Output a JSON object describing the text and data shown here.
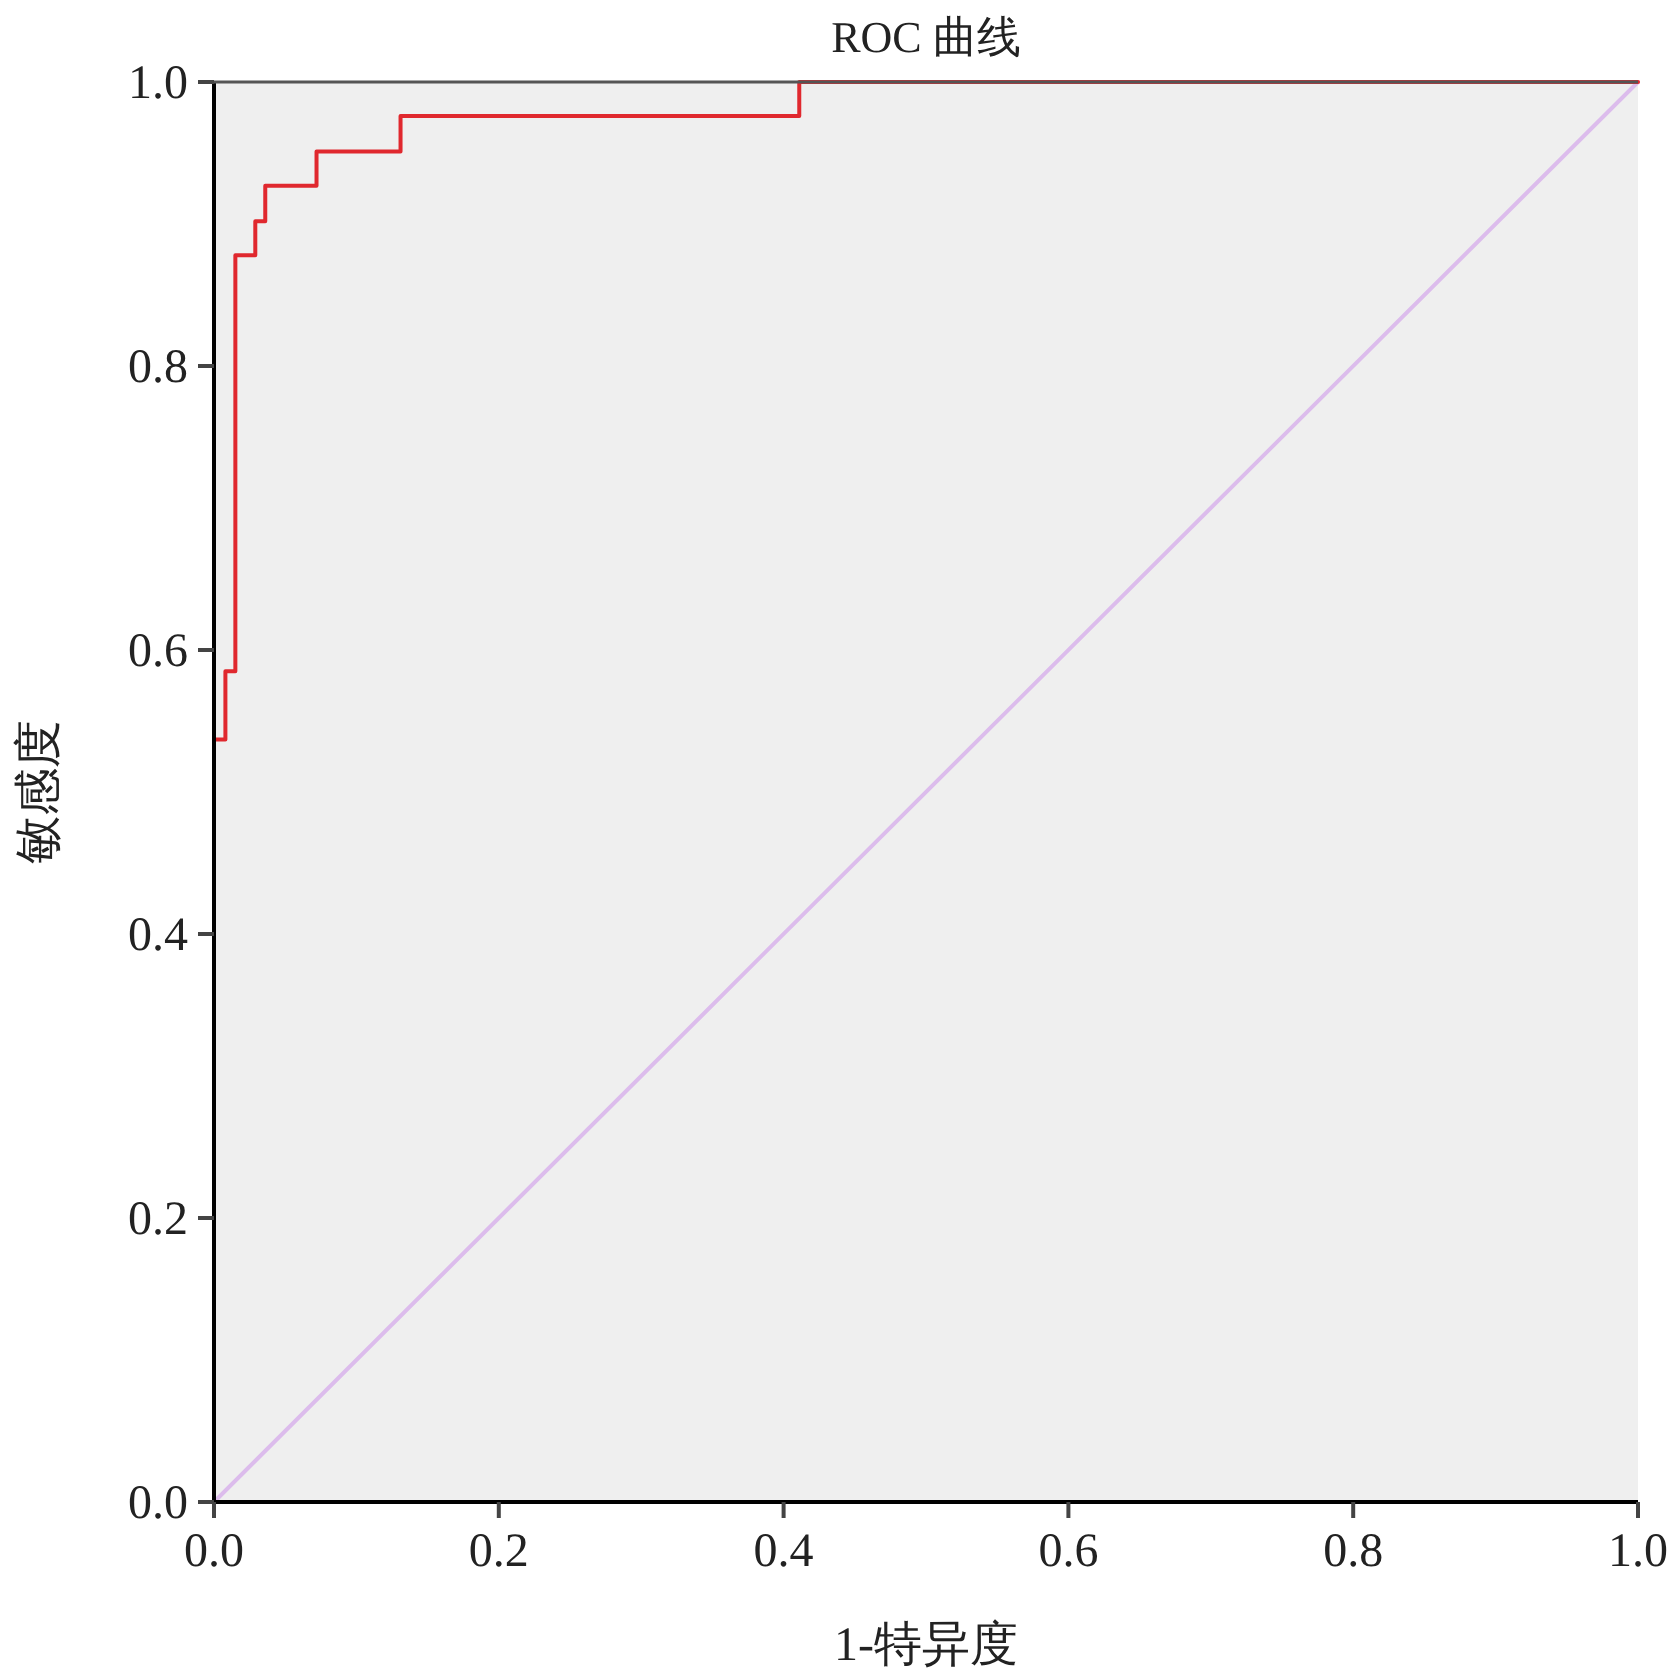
{
  "chart_data": {
    "type": "line",
    "title": "ROC 曲线",
    "xlabel": "1-特异度",
    "ylabel": "敏感度",
    "xlim": [
      0,
      1
    ],
    "ylim": [
      0,
      1
    ],
    "xticks": [
      {
        "value": 0,
        "label": "0.0"
      },
      {
        "value": 0.2,
        "label": "0.2"
      },
      {
        "value": 0.4,
        "label": "0.4"
      },
      {
        "value": 0.6,
        "label": "0.6"
      },
      {
        "value": 0.8,
        "label": "0.8"
      },
      {
        "value": 1,
        "label": "1.0"
      }
    ],
    "yticks": [
      {
        "value": 0,
        "label": "0.0"
      },
      {
        "value": 0.2,
        "label": "0.2"
      },
      {
        "value": 0.4,
        "label": "0.4"
      },
      {
        "value": 0.6,
        "label": "0.6"
      },
      {
        "value": 0.8,
        "label": "0.8"
      },
      {
        "value": 1,
        "label": "1.0"
      }
    ],
    "series": [
      {
        "color": "#dcbcec",
        "x": [
          0,
          1
        ],
        "values": [
          0,
          1
        ]
      },
      {
        "color": "#e0282e",
        "x": [
          0,
          0,
          0.008,
          0.008,
          0.015,
          0.015,
          0.029,
          0.029,
          0.036,
          0.036,
          0.072,
          0.072,
          0.131,
          0.131,
          0.411,
          0.411,
          1
        ],
        "values": [
          0,
          0.537,
          0.537,
          0.585,
          0.585,
          0.878,
          0.878,
          0.902,
          0.902,
          0.927,
          0.927,
          0.951,
          0.951,
          0.976,
          0.976,
          1,
          1
        ]
      }
    ]
  }
}
